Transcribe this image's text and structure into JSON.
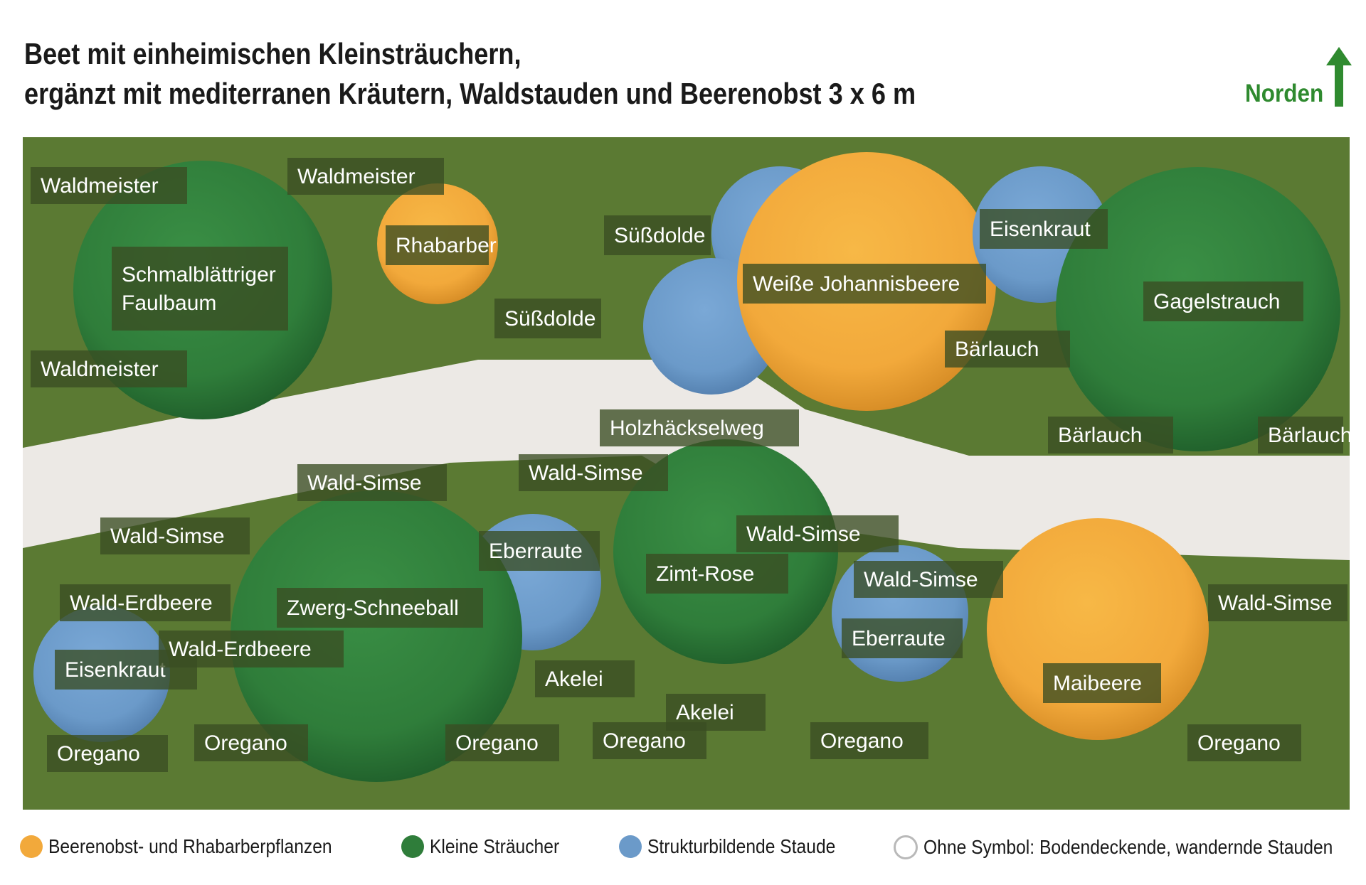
{
  "title": {
    "line1": "Beet mit einheimischen Kleinsträuchern,",
    "line2": "ergänzt mit mediterranen Kräutern, Waldstauden und Beerenobst 3 x 6 m"
  },
  "north": {
    "label": "Norden",
    "icon": "arrow-up-icon",
    "color": "#2f8a2f"
  },
  "colors": {
    "background": "#5b7a33",
    "path": "#ece9e5",
    "orange": "#f2a93b",
    "green": "#2f7d3a",
    "blue": "#6b9ac9",
    "label_bg": "#3a4d22"
  },
  "plants": [
    {
      "name": "Schmalblättriger Faulbaum",
      "category": "green"
    },
    {
      "name": "Rhabarber",
      "category": "orange"
    },
    {
      "name": "Süßdolde",
      "category": "blue"
    },
    {
      "name": "Süßdolde",
      "category": "blue"
    },
    {
      "name": "Weiße Johannisbeere",
      "category": "orange"
    },
    {
      "name": "Eisenkraut",
      "category": "blue"
    },
    {
      "name": "Gagelstrauch",
      "category": "green"
    },
    {
      "name": "Eberraute",
      "category": "blue"
    },
    {
      "name": "Zwerg-Schneeball",
      "category": "green"
    },
    {
      "name": "Zimt-Rose",
      "category": "green"
    },
    {
      "name": "Eisenkraut",
      "category": "blue"
    },
    {
      "name": "Eberraute",
      "category": "blue"
    },
    {
      "name": "Maibeere",
      "category": "orange"
    }
  ],
  "groundcover": [
    "Waldmeister",
    "Waldmeister",
    "Waldmeister",
    "Bärlauch",
    "Bärlauch",
    "Bärlauch",
    "Holzhäckselweg",
    "Wald-Simse",
    "Wald-Simse",
    "Wald-Simse",
    "Wald-Simse",
    "Wald-Simse",
    "Wald-Simse",
    "Wald-Erdbeere",
    "Wald-Erdbeere",
    "Akelei",
    "Akelei",
    "Oregano",
    "Oregano",
    "Oregano",
    "Oregano",
    "Oregano",
    "Oregano"
  ],
  "legend": [
    {
      "label": "Beerenobst- und Rhabarberpflanzen",
      "color": "#f2a93b"
    },
    {
      "label": "Kleine Sträucher",
      "color": "#2f7d3a"
    },
    {
      "label": "Strukturbildende Staude",
      "color": "#6b9ac9"
    },
    {
      "label": "Ohne Symbol: Bodendeckende, wandernde Stauden",
      "color": "none"
    }
  ]
}
